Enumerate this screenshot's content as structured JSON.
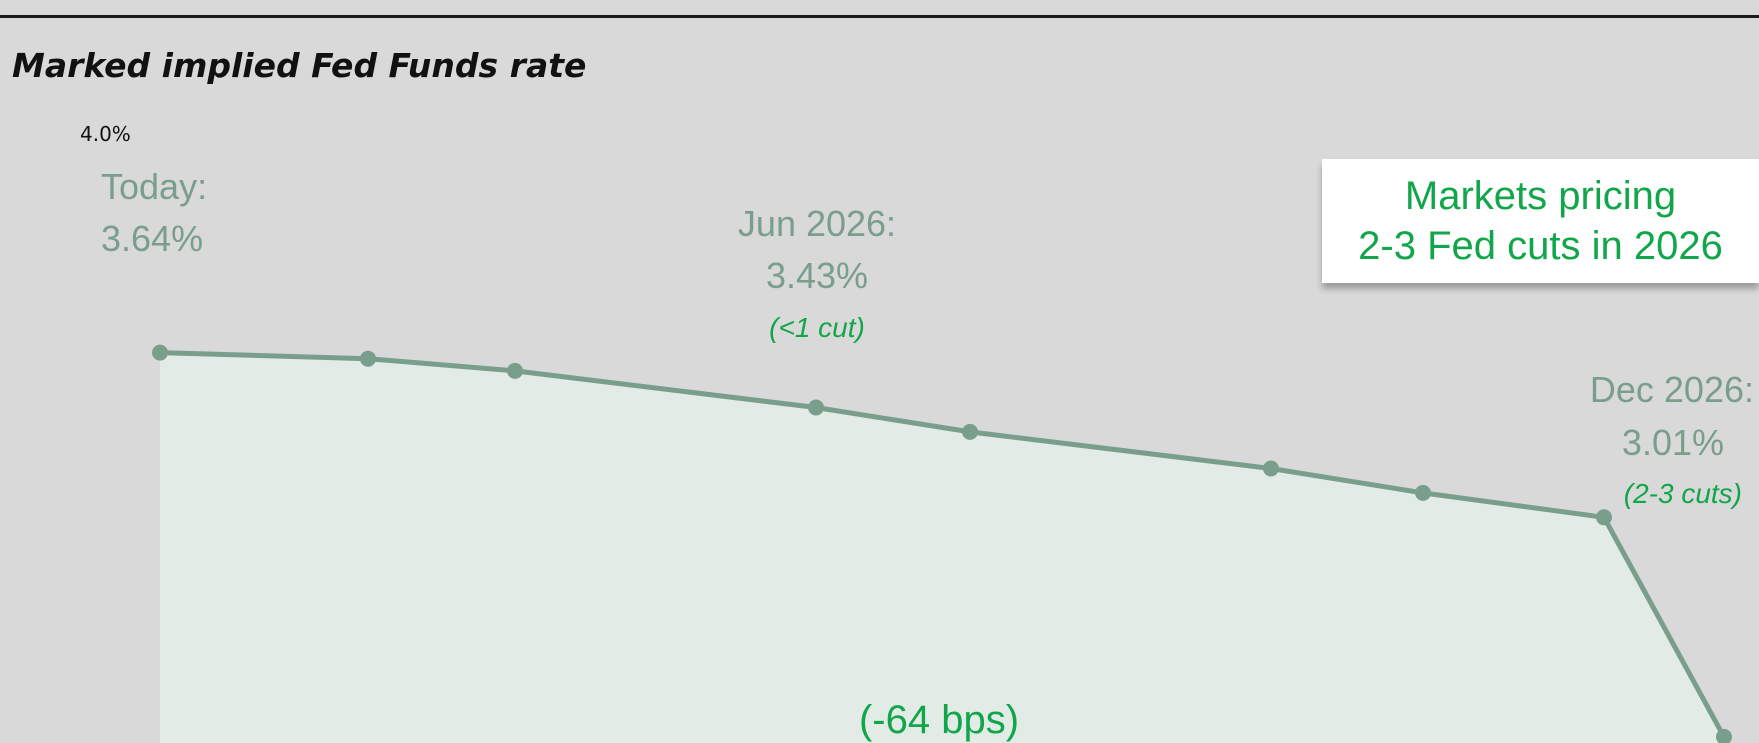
{
  "title": "Marked implied Fed Funds rate",
  "chart_data": {
    "type": "area",
    "x": [
      0,
      1,
      2,
      3,
      4,
      5,
      6,
      7,
      8
    ],
    "values": [
      3.64,
      3.63,
      3.61,
      3.55,
      3.51,
      3.45,
      3.41,
      3.37,
      3.01
    ],
    "ylim": [
      3.0,
      4.0
    ],
    "y_tick_labels": [
      "4.0%"
    ],
    "grid": false,
    "legend": "none",
    "line_color": "#7a9e8c",
    "fill_color": "#e2ebe6",
    "annotations": {
      "start": {
        "label": "Today:",
        "value": "3.64%"
      },
      "mid": {
        "label": "Jun 2026:",
        "value": "3.43%",
        "note": "(<1 cut)"
      },
      "end": {
        "label": "Dec 2026:",
        "value": "3.01%",
        "note": "(2-3 cuts)"
      },
      "change": "(-64 bps)"
    },
    "callout": {
      "line1": "Markets pricing",
      "line2": "2-3 Fed cuts in 2026"
    }
  },
  "colors": {
    "background": "#d9d9d9",
    "line": "#7a9e8c",
    "fill": "#e2ebe6",
    "label_gray": "#7a9e8c",
    "accent_green": "#12a64a"
  }
}
